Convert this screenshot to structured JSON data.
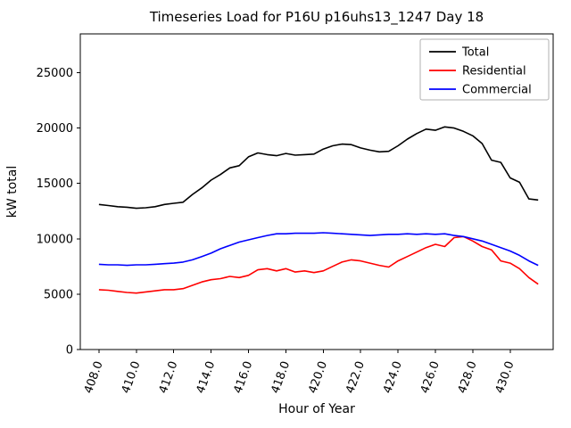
{
  "figure": {
    "background": "#ffffff"
  },
  "chart_data": {
    "type": "line",
    "title": "Timeseries Load for P16U p16uhs13_1247  Day 18",
    "xlabel": "Hour of Year",
    "ylabel": "kW total",
    "grid": false,
    "legend_position": "upper right",
    "xlim": [
      407.0,
      432.3
    ],
    "ylim": [
      0,
      28500
    ],
    "xticks": [
      {
        "value": 408,
        "label": "408.0"
      },
      {
        "value": 410,
        "label": "410.0"
      },
      {
        "value": 412,
        "label": "412.0"
      },
      {
        "value": 414,
        "label": "414.0"
      },
      {
        "value": 416,
        "label": "416.0"
      },
      {
        "value": 418,
        "label": "418.0"
      },
      {
        "value": 420,
        "label": "420.0"
      },
      {
        "value": 422,
        "label": "422.0"
      },
      {
        "value": 424,
        "label": "424.0"
      },
      {
        "value": 426,
        "label": "426.0"
      },
      {
        "value": 428,
        "label": "428.0"
      },
      {
        "value": 430,
        "label": "430.0"
      }
    ],
    "yticks": [
      {
        "value": 0,
        "label": "0"
      },
      {
        "value": 5000,
        "label": "5000"
      },
      {
        "value": 10000,
        "label": "10000"
      },
      {
        "value": 15000,
        "label": "15000"
      },
      {
        "value": 20000,
        "label": "20000"
      },
      {
        "value": 25000,
        "label": "25000"
      }
    ],
    "x": [
      408.0,
      408.5,
      409.0,
      409.5,
      410.0,
      410.5,
      411.0,
      411.5,
      412.0,
      412.5,
      413.0,
      413.5,
      414.0,
      414.5,
      415.0,
      415.5,
      416.0,
      416.5,
      417.0,
      417.5,
      418.0,
      418.5,
      419.0,
      419.5,
      420.0,
      420.5,
      421.0,
      421.5,
      422.0,
      422.5,
      423.0,
      423.5,
      424.0,
      424.5,
      425.0,
      425.5,
      426.0,
      426.5,
      427.0,
      427.5,
      428.0,
      428.5,
      429.0,
      429.5,
      430.0,
      430.5,
      431.0,
      431.5
    ],
    "series": [
      {
        "name": "Total",
        "color": "#000000",
        "values": [
          13100,
          13000,
          12900,
          12850,
          12750,
          12800,
          12900,
          13100,
          13200,
          13300,
          14000,
          14600,
          15300,
          15800,
          16400,
          16600,
          17400,
          17750,
          17600,
          17500,
          17700,
          17550,
          17600,
          17650,
          18100,
          18400,
          18550,
          18500,
          18200,
          18000,
          17850,
          17900,
          18400,
          19000,
          19500,
          19900,
          19800,
          20100,
          20000,
          19700,
          19300,
          18600,
          17100,
          16900,
          15500,
          15100,
          13600,
          13500
        ]
      },
      {
        "name": "Residential",
        "color": "#ff0000",
        "values": [
          5400,
          5350,
          5250,
          5150,
          5100,
          5200,
          5300,
          5400,
          5400,
          5500,
          5800,
          6100,
          6300,
          6400,
          6600,
          6500,
          6700,
          7200,
          7300,
          7100,
          7300,
          7000,
          7100,
          6950,
          7100,
          7500,
          7900,
          8100,
          8000,
          7800,
          7600,
          7450,
          8000,
          8400,
          8800,
          9200,
          9500,
          9300,
          10100,
          10200,
          9800,
          9300,
          9000,
          8000,
          7800,
          7300,
          6500,
          5900
        ]
      },
      {
        "name": "Commercial",
        "color": "#0000ff",
        "values": [
          7700,
          7650,
          7650,
          7600,
          7650,
          7650,
          7700,
          7750,
          7800,
          7900,
          8100,
          8400,
          8700,
          9100,
          9400,
          9700,
          9900,
          10100,
          10300,
          10450,
          10450,
          10500,
          10500,
          10500,
          10550,
          10500,
          10450,
          10400,
          10350,
          10300,
          10350,
          10400,
          10400,
          10450,
          10400,
          10450,
          10400,
          10450,
          10300,
          10200,
          10000,
          9800,
          9500,
          9200,
          8900,
          8500,
          8000,
          7600
        ]
      }
    ]
  }
}
